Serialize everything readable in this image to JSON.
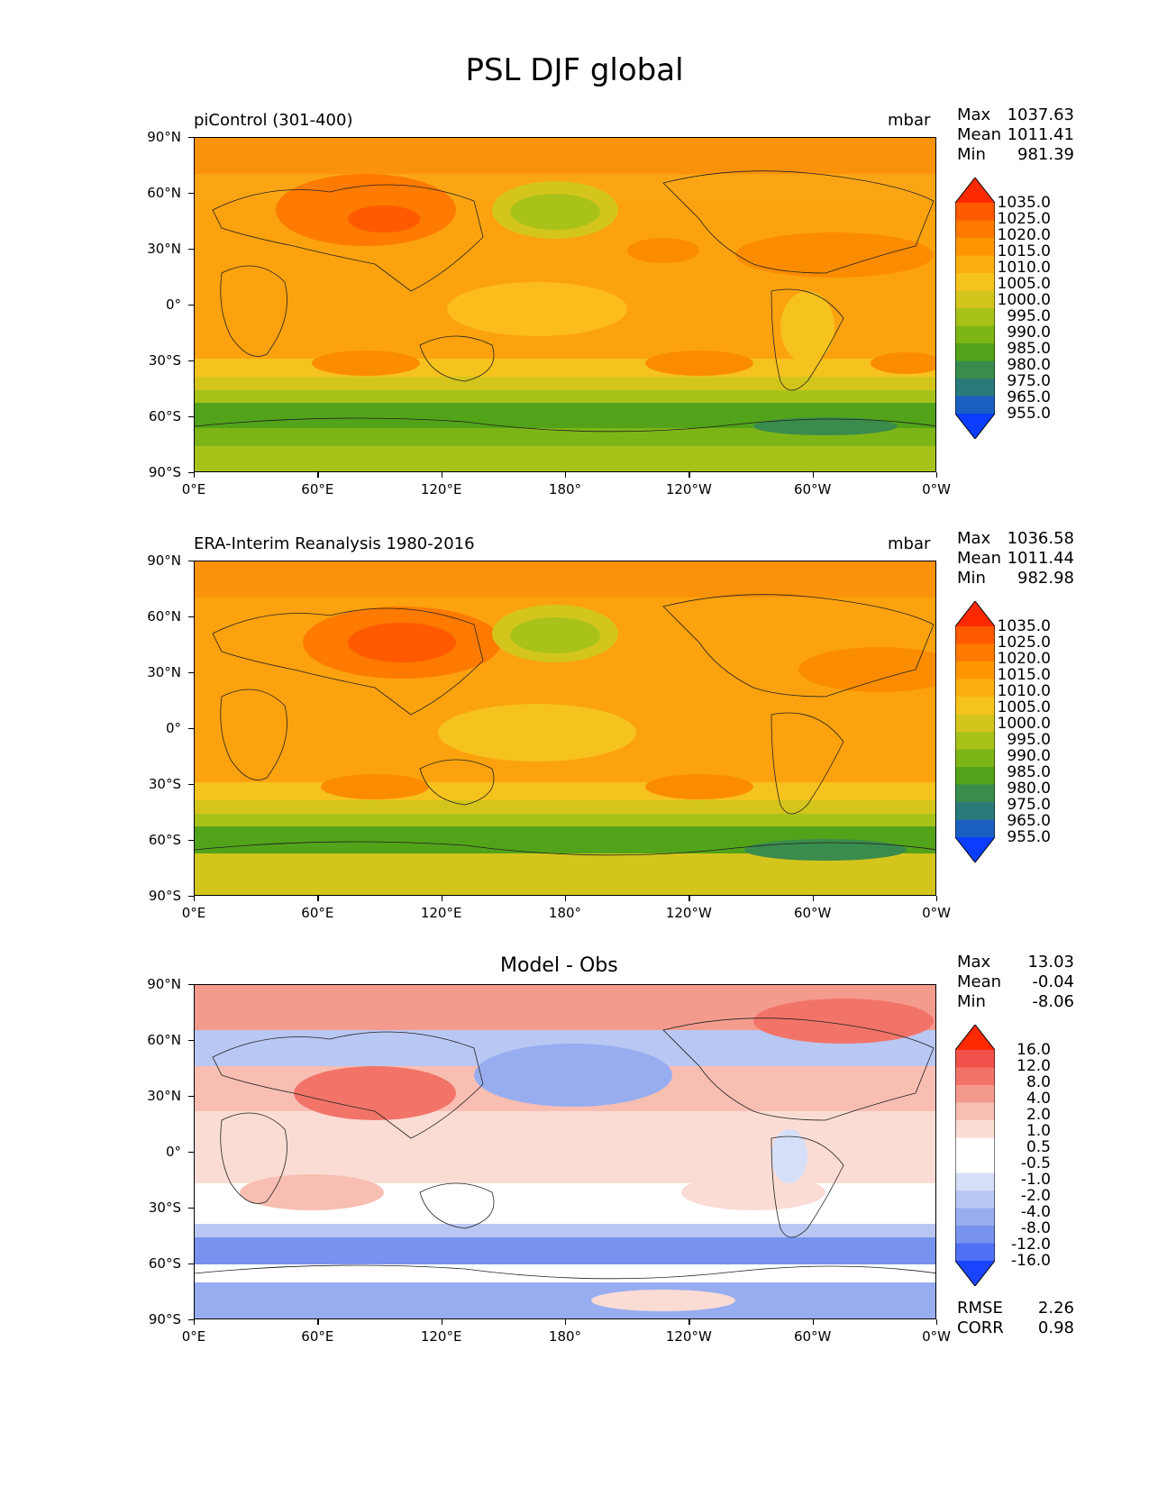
{
  "figure": {
    "title": "PSL DJF global"
  },
  "axes": {
    "lat_ticks": [
      "90°N",
      "60°N",
      "30°N",
      "0°",
      "30°S",
      "60°S",
      "90°S"
    ],
    "lon_ticks": [
      "0°E",
      "60°E",
      "120°E",
      "180°",
      "120°W",
      "60°W",
      "0°W"
    ]
  },
  "panels": [
    {
      "title_left": "piControl (301-400)",
      "title_center": "",
      "units": "mbar",
      "stats": [
        {
          "label": "Max",
          "value": "1037.63"
        },
        {
          "label": "Mean",
          "value": "1011.41"
        },
        {
          "label": "Min",
          "value": "981.39"
        }
      ],
      "colorbar_labels": [
        "1035.0",
        "1025.0",
        "1020.0",
        "1015.0",
        "1010.0",
        "1005.0",
        "1000.0",
        "995.0",
        "990.0",
        "985.0",
        "980.0",
        "975.0",
        "965.0",
        "955.0"
      ],
      "extra_stats": []
    },
    {
      "title_left": "ERA-Interim Reanalysis 1980-2016",
      "title_center": "",
      "units": "mbar",
      "stats": [
        {
          "label": "Max",
          "value": "1036.58"
        },
        {
          "label": "Mean",
          "value": "1011.44"
        },
        {
          "label": "Min",
          "value": "982.98"
        }
      ],
      "colorbar_labels": [
        "1035.0",
        "1025.0",
        "1020.0",
        "1015.0",
        "1010.0",
        "1005.0",
        "1000.0",
        "995.0",
        "990.0",
        "985.0",
        "980.0",
        "975.0",
        "965.0",
        "955.0"
      ],
      "extra_stats": []
    },
    {
      "title_left": "",
      "title_center": "Model - Obs",
      "units": "",
      "stats": [
        {
          "label": "Max",
          "value": "13.03"
        },
        {
          "label": "Mean",
          "value": "-0.04"
        },
        {
          "label": "Min",
          "value": "-8.06"
        }
      ],
      "colorbar_labels": [
        "16.0",
        "12.0",
        "8.0",
        "4.0",
        "2.0",
        "1.0",
        "0.5",
        "-0.5",
        "-1.0",
        "-2.0",
        "-4.0",
        "-8.0",
        "-12.0",
        "-16.0"
      ],
      "extra_stats": [
        {
          "label": "RMSE",
          "value": "2.26"
        },
        {
          "label": "CORR",
          "value": "0.98"
        }
      ]
    }
  ],
  "colors": {
    "psl_scale": [
      "#ff2a00",
      "#ff5a00",
      "#ff7a00",
      "#ff9500",
      "#fcae12",
      "#f6c21d",
      "#d4c51c",
      "#a8c21a",
      "#7eb516",
      "#52a319",
      "#3a8c4c",
      "#2a7a7a",
      "#1a5fbf",
      "#0a3dff"
    ],
    "diff_scale": [
      "#ff2a00",
      "#f2504a",
      "#f27468",
      "#f49b8d",
      "#f8beb2",
      "#fbdcd5",
      "#ffffff",
      "#ffffff",
      "#d6dff8",
      "#b9c7f3",
      "#98adf0",
      "#7793ee",
      "#4f70f3",
      "#1a44ff"
    ]
  }
}
